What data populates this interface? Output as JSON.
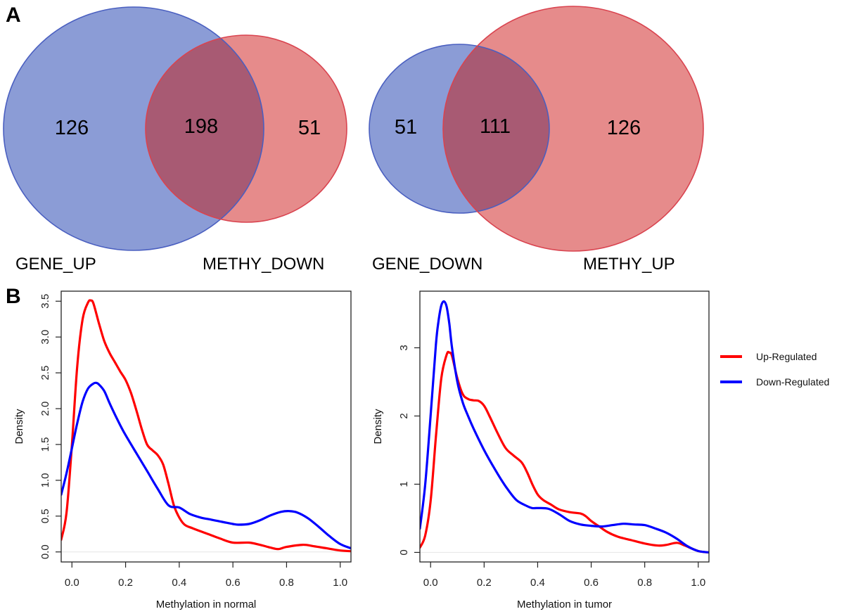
{
  "figure": {
    "panel_a_label": "A",
    "panel_b_label": "B"
  },
  "colors": {
    "venn_blue_fill": "#8b9cd6",
    "venn_blue_stroke": "#4a5fc0",
    "venn_red_fill": "#e68b8b",
    "venn_red_stroke": "#d9434f",
    "venn_overlap": "#a85a73",
    "up_regulated": "#ff0000",
    "down_regulated": "#0000ff"
  },
  "chart_data": [
    {
      "type": "venn",
      "sets": [
        {
          "name": "GENE_UP",
          "only": 126,
          "color": "blue"
        },
        {
          "name": "METHY_DOWN",
          "only": 51,
          "color": "red"
        }
      ],
      "intersection": 198,
      "labels": {
        "left": "GENE_UP",
        "right": "METHY_DOWN"
      },
      "counts": {
        "left_only": "126",
        "intersection": "198",
        "right_only": "51"
      }
    },
    {
      "type": "venn",
      "sets": [
        {
          "name": "GENE_DOWN",
          "only": 51,
          "color": "blue"
        },
        {
          "name": "METHY_UP",
          "only": 126,
          "color": "red"
        }
      ],
      "intersection": 111,
      "labels": {
        "left": "GENE_DOWN",
        "right": "METHY_UP"
      },
      "counts": {
        "left_only": "51",
        "intersection": "111",
        "right_only": "126"
      }
    },
    {
      "type": "line",
      "title": "",
      "xlabel": "Methylation in normal",
      "ylabel": "Density",
      "xlim": [
        -0.04,
        1.04
      ],
      "ylim": [
        -0.14,
        3.64
      ],
      "xticks": [
        "0.0",
        "0.2",
        "0.4",
        "0.6",
        "0.8",
        "1.0"
      ],
      "xtick_values": [
        0.0,
        0.2,
        0.4,
        0.6,
        0.8,
        1.0
      ],
      "yticks": [
        "0.0",
        "0.5",
        "1.0",
        "1.5",
        "2.0",
        "2.5",
        "3.0",
        "3.5"
      ],
      "ytick_values": [
        0.0,
        0.5,
        1.0,
        1.5,
        2.0,
        2.5,
        3.0,
        3.5
      ],
      "grid": false,
      "series": [
        {
          "name": "Up-Regulated",
          "color": "red",
          "x": [
            -0.04,
            -0.02,
            0.0,
            0.02,
            0.04,
            0.06,
            0.07,
            0.08,
            0.1,
            0.12,
            0.14,
            0.16,
            0.18,
            0.2,
            0.22,
            0.24,
            0.26,
            0.28,
            0.3,
            0.32,
            0.34,
            0.36,
            0.38,
            0.4,
            0.42,
            0.45,
            0.5,
            0.55,
            0.6,
            0.66,
            0.7,
            0.74,
            0.77,
            0.8,
            0.86,
            0.9,
            0.95,
            1.0,
            1.04
          ],
          "y": [
            0.17,
            0.55,
            1.5,
            2.6,
            3.25,
            3.48,
            3.51,
            3.47,
            3.2,
            2.95,
            2.78,
            2.65,
            2.52,
            2.4,
            2.22,
            1.98,
            1.72,
            1.5,
            1.42,
            1.35,
            1.22,
            0.95,
            0.65,
            0.48,
            0.38,
            0.33,
            0.26,
            0.19,
            0.13,
            0.13,
            0.1,
            0.06,
            0.04,
            0.07,
            0.1,
            0.08,
            0.05,
            0.02,
            0.01
          ]
        },
        {
          "name": "Down-Regulated",
          "color": "blue",
          "x": [
            -0.04,
            -0.02,
            0.0,
            0.02,
            0.04,
            0.06,
            0.08,
            0.09,
            0.1,
            0.12,
            0.14,
            0.16,
            0.18,
            0.2,
            0.24,
            0.28,
            0.32,
            0.36,
            0.4,
            0.44,
            0.48,
            0.52,
            0.56,
            0.6,
            0.62,
            0.66,
            0.7,
            0.74,
            0.78,
            0.81,
            0.84,
            0.88,
            0.92,
            0.96,
            1.0,
            1.04
          ],
          "y": [
            0.8,
            1.1,
            1.45,
            1.8,
            2.1,
            2.28,
            2.35,
            2.36,
            2.34,
            2.25,
            2.08,
            1.92,
            1.77,
            1.63,
            1.38,
            1.13,
            0.88,
            0.65,
            0.62,
            0.53,
            0.48,
            0.45,
            0.42,
            0.39,
            0.38,
            0.39,
            0.44,
            0.51,
            0.56,
            0.57,
            0.55,
            0.47,
            0.35,
            0.22,
            0.11,
            0.05
          ]
        }
      ]
    },
    {
      "type": "line",
      "title": "",
      "xlabel": "Methylation in tumor",
      "ylabel": "Density",
      "xlim": [
        -0.04,
        1.04
      ],
      "ylim": [
        -0.14,
        3.83
      ],
      "xticks": [
        "0.0",
        "0.2",
        "0.4",
        "0.6",
        "0.8",
        "1.0"
      ],
      "xtick_values": [
        0.0,
        0.2,
        0.4,
        0.6,
        0.8,
        1.0
      ],
      "yticks": [
        "0",
        "1",
        "2",
        "3"
      ],
      "ytick_values": [
        0,
        1,
        2,
        3
      ],
      "grid": false,
      "legend": {
        "position": "right",
        "entries": [
          "Up-Regulated",
          "Down-Regulated"
        ]
      },
      "series": [
        {
          "name": "Up-Regulated",
          "color": "red",
          "x": [
            -0.04,
            -0.02,
            0.0,
            0.02,
            0.04,
            0.06,
            0.07,
            0.08,
            0.1,
            0.12,
            0.14,
            0.16,
            0.18,
            0.2,
            0.22,
            0.25,
            0.28,
            0.31,
            0.34,
            0.36,
            0.38,
            0.4,
            0.42,
            0.45,
            0.48,
            0.52,
            0.56,
            0.58,
            0.6,
            0.63,
            0.66,
            0.7,
            0.75,
            0.8,
            0.85,
            0.88,
            0.92,
            0.95,
            1.0,
            1.04
          ],
          "y": [
            0.07,
            0.25,
            0.75,
            1.7,
            2.55,
            2.9,
            2.93,
            2.88,
            2.55,
            2.32,
            2.25,
            2.23,
            2.22,
            2.15,
            2.0,
            1.75,
            1.53,
            1.42,
            1.32,
            1.18,
            1.0,
            0.85,
            0.77,
            0.7,
            0.63,
            0.59,
            0.57,
            0.53,
            0.46,
            0.38,
            0.3,
            0.23,
            0.18,
            0.13,
            0.1,
            0.11,
            0.14,
            0.1,
            0.02,
            0.0
          ]
        },
        {
          "name": "Down-Regulated",
          "color": "blue",
          "x": [
            -0.04,
            -0.02,
            0.0,
            0.02,
            0.03,
            0.04,
            0.05,
            0.06,
            0.07,
            0.08,
            0.1,
            0.12,
            0.14,
            0.16,
            0.2,
            0.24,
            0.28,
            0.32,
            0.36,
            0.38,
            0.4,
            0.44,
            0.48,
            0.52,
            0.56,
            0.6,
            0.64,
            0.68,
            0.72,
            0.76,
            0.8,
            0.84,
            0.88,
            0.92,
            0.96,
            1.0,
            1.04
          ],
          "y": [
            0.35,
            1.0,
            2.0,
            3.05,
            3.4,
            3.62,
            3.68,
            3.6,
            3.35,
            3.0,
            2.5,
            2.2,
            2.0,
            1.82,
            1.5,
            1.22,
            0.97,
            0.77,
            0.68,
            0.65,
            0.65,
            0.64,
            0.56,
            0.46,
            0.41,
            0.39,
            0.38,
            0.4,
            0.42,
            0.41,
            0.4,
            0.35,
            0.29,
            0.2,
            0.09,
            0.02,
            0.0
          ]
        }
      ]
    }
  ]
}
